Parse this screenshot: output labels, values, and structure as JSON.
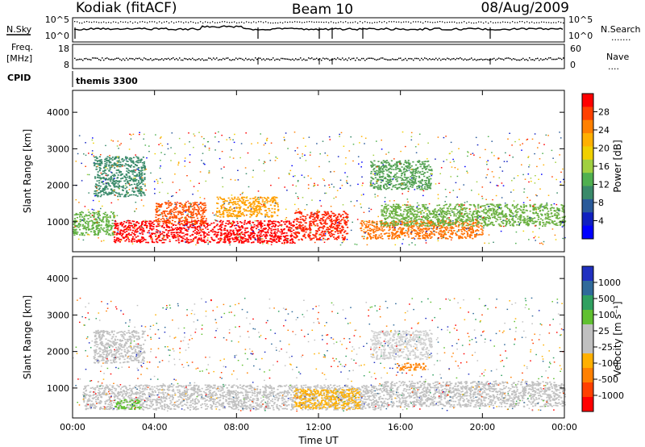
{
  "header": {
    "station": "Kodiak (fitACF)",
    "beam": "Beam 10",
    "date": "08/Aug/2009"
  },
  "summary_panels": {
    "nsky_label": "N.Sky",
    "nsearch_label": "N.Search",
    "nsearch_marker": ".......",
    "freq_label": "Freq.",
    "freq_unit": "[MHz]",
    "nave_label": "Nave",
    "nave_marker": "....",
    "cpid_label": "CPID",
    "cpid_value": "themis 3300",
    "noise_ticks_left": [
      "10^5",
      "10^0"
    ],
    "noise_ticks_right": [
      "10^5",
      "10^0"
    ],
    "freq_ticks": [
      "18",
      "8"
    ],
    "nave_ticks": [
      "60",
      "0"
    ]
  },
  "time_axis": {
    "label": "Time UT",
    "ticks": [
      "00:00",
      "04:00",
      "08:00",
      "12:00",
      "16:00",
      "20:00",
      "00:00"
    ],
    "range_hours": [
      0,
      24
    ]
  },
  "chart_data": [
    {
      "type": "heatmap",
      "title": "",
      "xlabel": "",
      "ylabel": "Slant Range [km]",
      "ylim": [
        180,
        4600
      ],
      "yticks": [
        "1000",
        "2000",
        "3000",
        "4000"
      ],
      "yticks_values": [
        1000,
        2000,
        3000,
        4000
      ],
      "colorbar": {
        "label": "Power [dB]",
        "ticks": [
          "28",
          "24",
          "20",
          "16",
          "12",
          "8",
          "4"
        ],
        "colors": [
          "#ff0000",
          "#ff4000",
          "#ff8000",
          "#ffb000",
          "#f0d000",
          "#a0d040",
          "#50b050",
          "#3a8a6a",
          "#2a5a9a",
          "#1020c0",
          "#0000ff"
        ]
      },
      "regions": [
        {
          "t0": 2.0,
          "t1": 10.8,
          "r0": 430,
          "r1": 1050,
          "color": "#ff0000"
        },
        {
          "t0": 10.8,
          "t1": 13.4,
          "r0": 520,
          "r1": 1300,
          "color": "#ff2000"
        },
        {
          "t0": 4.0,
          "t1": 6.5,
          "r0": 950,
          "r1": 1550,
          "color": "#ff5000"
        },
        {
          "t0": 7.0,
          "t1": 10.0,
          "r0": 1150,
          "r1": 1700,
          "color": "#ffa000"
        },
        {
          "t0": 0.0,
          "t1": 2.0,
          "r0": 650,
          "r1": 1300,
          "color": "#60b040"
        },
        {
          "t0": 14.0,
          "t1": 20.0,
          "r0": 550,
          "r1": 1050,
          "color": "#ff7000"
        },
        {
          "t0": 15.0,
          "t1": 24.0,
          "r0": 900,
          "r1": 1500,
          "color": "#6ab040"
        },
        {
          "t0": 1.0,
          "t1": 3.5,
          "r0": 1700,
          "r1": 2800,
          "color": "#3a8a6a"
        },
        {
          "t0": 14.5,
          "t1": 17.5,
          "r0": 1900,
          "r1": 2700,
          "color": "#50a050"
        }
      ]
    },
    {
      "type": "heatmap",
      "title": "",
      "xlabel": "Time UT",
      "ylabel": "Slant Range [km]",
      "ylim": [
        180,
        4600
      ],
      "yticks": [
        "1000",
        "2000",
        "3000",
        "4000"
      ],
      "yticks_values": [
        1000,
        2000,
        3000,
        4000
      ],
      "colorbar": {
        "label": "Velocity [m s⁻¹]",
        "ticks": [
          "1000",
          "500",
          "100",
          "25",
          "-25",
          "-100",
          "-500",
          "-1000"
        ],
        "colors": [
          "#2030c0",
          "#306a9a",
          "#30a060",
          "#60c030",
          "#c0c0c0",
          "#c0c0c0",
          "#ffb000",
          "#ff8000",
          "#ff4000",
          "#ff0000"
        ]
      },
      "regions": [
        {
          "t0": 0.5,
          "t1": 15.0,
          "r0": 420,
          "r1": 1100,
          "color": "#c0c0c0"
        },
        {
          "t0": 15.0,
          "t1": 24.0,
          "r0": 500,
          "r1": 1200,
          "color": "#c0c0c0"
        },
        {
          "t0": 2.0,
          "t1": 3.3,
          "r0": 430,
          "r1": 700,
          "color": "#60c030"
        },
        {
          "t0": 10.8,
          "t1": 14.0,
          "r0": 450,
          "r1": 1000,
          "color": "#ffb000"
        },
        {
          "t0": 15.8,
          "t1": 17.2,
          "r0": 1500,
          "r1": 1700,
          "color": "#ff8000"
        },
        {
          "t0": 1.0,
          "t1": 3.5,
          "r0": 1700,
          "r1": 2600,
          "color": "#c0c0c0"
        },
        {
          "t0": 14.5,
          "t1": 17.5,
          "r0": 1800,
          "r1": 2600,
          "color": "#d0d0d0"
        }
      ]
    }
  ]
}
